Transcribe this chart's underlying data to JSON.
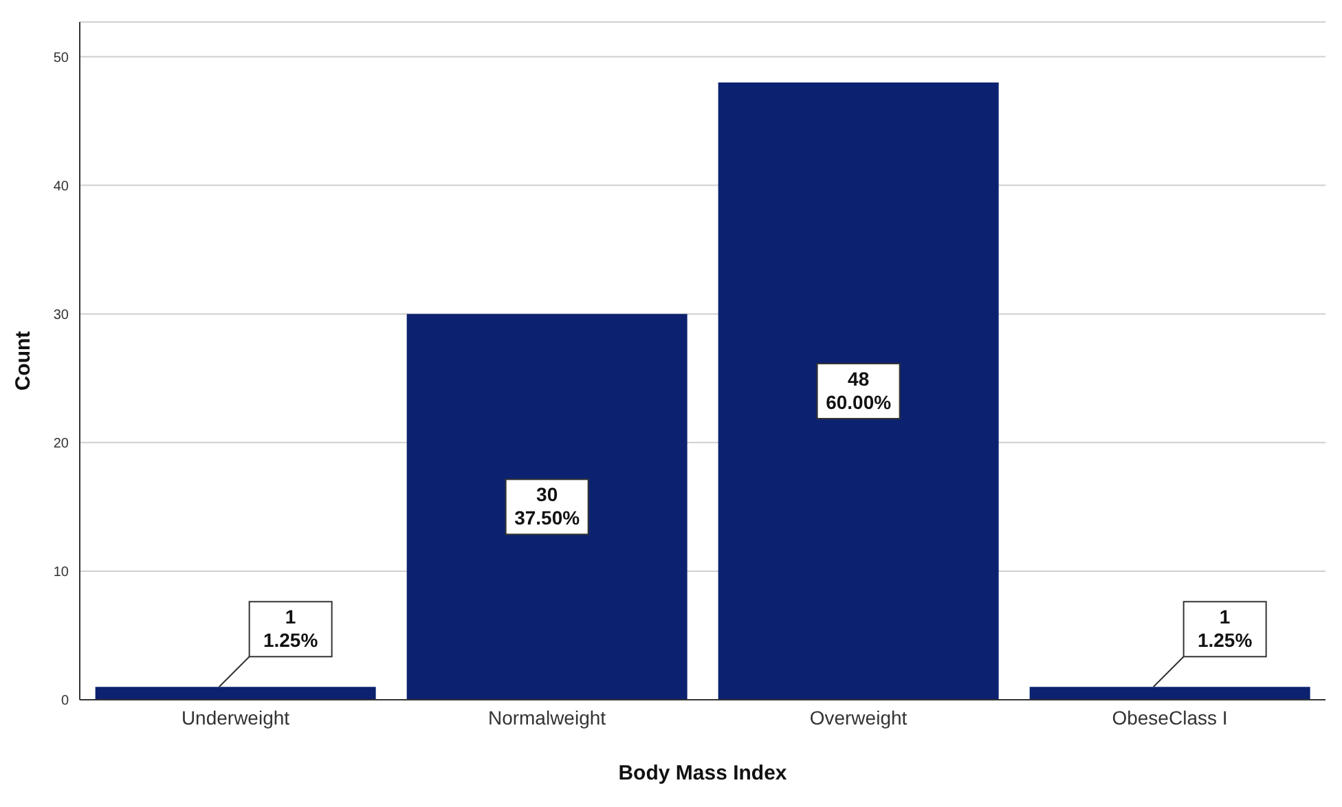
{
  "chart_data": {
    "type": "bar",
    "xlabel": "Body Mass Index",
    "ylabel": "Count",
    "categories": [
      "Underweight",
      "Normalweight",
      "Overweight",
      "ObeseClass I"
    ],
    "values": [
      1,
      30,
      48,
      1
    ],
    "value_labels": [
      "1\n1.25%",
      "30\n37.50%",
      "48\n60.00%",
      "1\n1.25%"
    ],
    "color": "#0c2270",
    "ylim": [
      0,
      52.7
    ],
    "yticks": [
      0,
      10,
      20,
      30,
      40,
      50
    ],
    "grid": "y"
  }
}
